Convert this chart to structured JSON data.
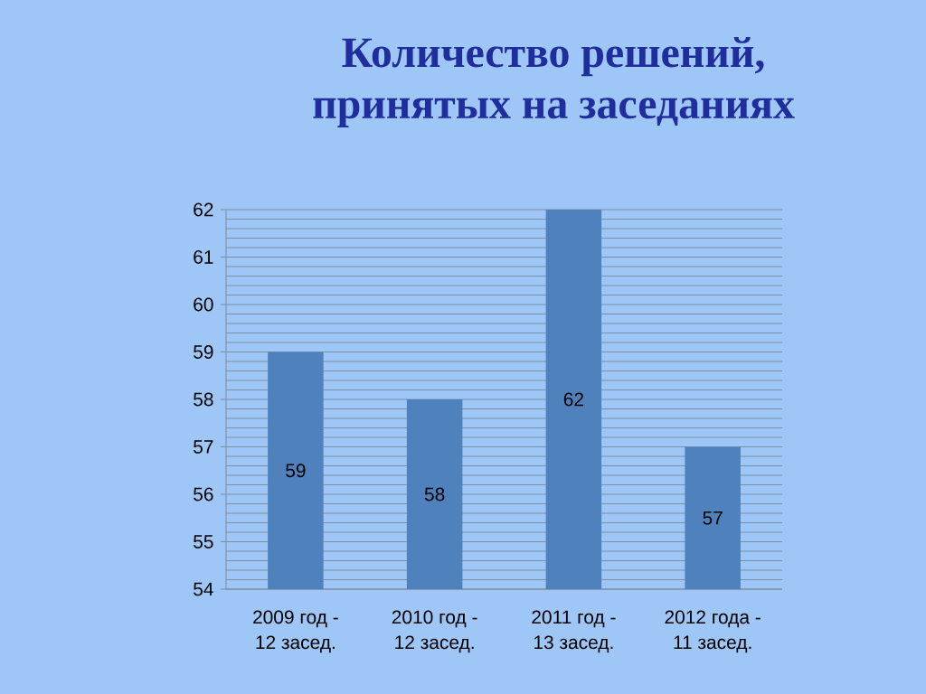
{
  "chart_data": {
    "type": "bar",
    "title": "Количество решений, принятых на заседаниях",
    "categories": [
      "2009 год - 12 засед.",
      "2010 год - 12 засед.",
      "2011 год - 13 засед.",
      "2012 года - 11 засед."
    ],
    "values": [
      59,
      58,
      62,
      57
    ],
    "color": "#4f81bd",
    "ylim": [
      54,
      62
    ],
    "yticks": [
      54,
      55,
      56,
      57,
      58,
      59,
      60,
      61,
      62
    ],
    "grid": "y",
    "data_labels": true
  }
}
